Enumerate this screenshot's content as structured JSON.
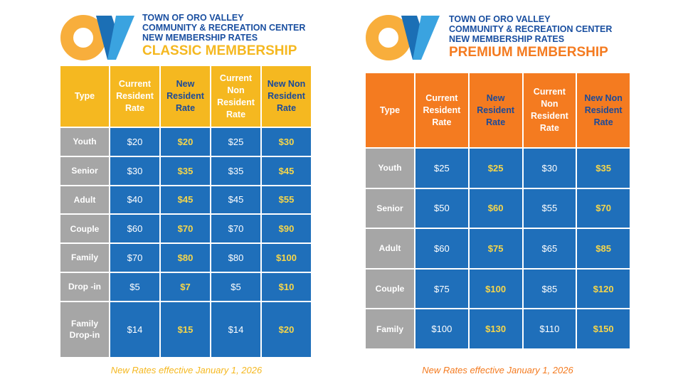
{
  "panels": [
    {
      "header": {
        "lines": [
          "TOWN OF ORO VALLEY",
          "COMMUNITY & RECREATION CENTER",
          "NEW MEMBERSHIP RATES"
        ],
        "title": "CLASSIC MEMBERSHIP"
      },
      "table": {
        "columns": [
          "Type",
          "Current Resident Rate",
          "New Resident Rate",
          "Current Non Resident Rate",
          "New Non Resident Rate"
        ],
        "rows": [
          [
            "Youth",
            "$20",
            "$20",
            "$25",
            "$30"
          ],
          [
            "Senior",
            "$30",
            "$35",
            "$35",
            "$45"
          ],
          [
            "Adult",
            "$40",
            "$45",
            "$45",
            "$55"
          ],
          [
            "Couple",
            "$60",
            "$70",
            "$70",
            "$90"
          ],
          [
            "Family",
            "$70",
            "$80",
            "$80",
            "$100"
          ],
          [
            "Drop -in",
            "$5",
            "$7",
            "$5",
            "$10"
          ],
          [
            "Family Drop-in",
            "$14",
            "$15",
            "$14",
            "$20"
          ]
        ]
      },
      "note": "New Rates effective January 1, 2026"
    },
    {
      "header": {
        "lines": [
          "TOWN OF ORO VALLEY",
          "COMMUNITY & RECREATION CENTER",
          "NEW MEMBERSHIP RATES"
        ],
        "title": "PREMIUM MEMBERSHIP"
      },
      "table": {
        "columns": [
          "Type",
          "Current Resident Rate",
          "New Resident Rate",
          "Current Non Resident Rate",
          "New Non Resident Rate"
        ],
        "rows": [
          [
            "Youth",
            "$25",
            "$25",
            "$30",
            "$35"
          ],
          [
            "Senior",
            "$50",
            "$60",
            "$55",
            "$70"
          ],
          [
            "Adult",
            "$60",
            "$75",
            "$65",
            "$85"
          ],
          [
            "Couple",
            "$75",
            "$100",
            "$85",
            "$120"
          ],
          [
            "Family",
            "$100",
            "$130",
            "$110",
            "$150"
          ]
        ]
      },
      "note": "New Rates effective January 1, 2026"
    }
  ]
}
